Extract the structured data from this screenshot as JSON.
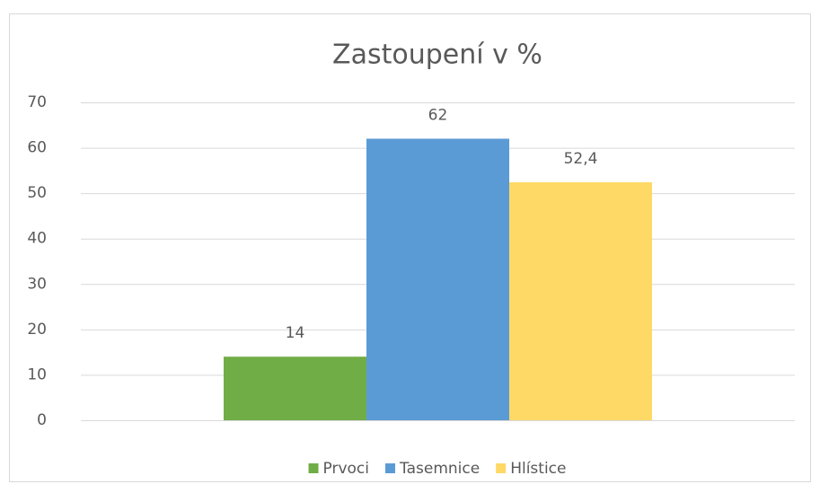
{
  "chart_data": {
    "type": "bar",
    "title": "Zastoupení v %",
    "categories": [
      null
    ],
    "series": [
      {
        "name": "Prvoci",
        "color": "#70ad47",
        "values": [
          14
        ]
      },
      {
        "name": "Tasemnice",
        "color": "#5b9bd5",
        "values": [
          62
        ]
      },
      {
        "name": "Hlístice",
        "color": "#ffd966",
        "values": [
          52.4
        ],
        "value_labels": [
          "52,4"
        ]
      }
    ],
    "ylim": [
      0,
      70
    ],
    "yticks": [
      0,
      10,
      20,
      30,
      40,
      50,
      60,
      70
    ],
    "grid": true,
    "legend": "bottom"
  }
}
